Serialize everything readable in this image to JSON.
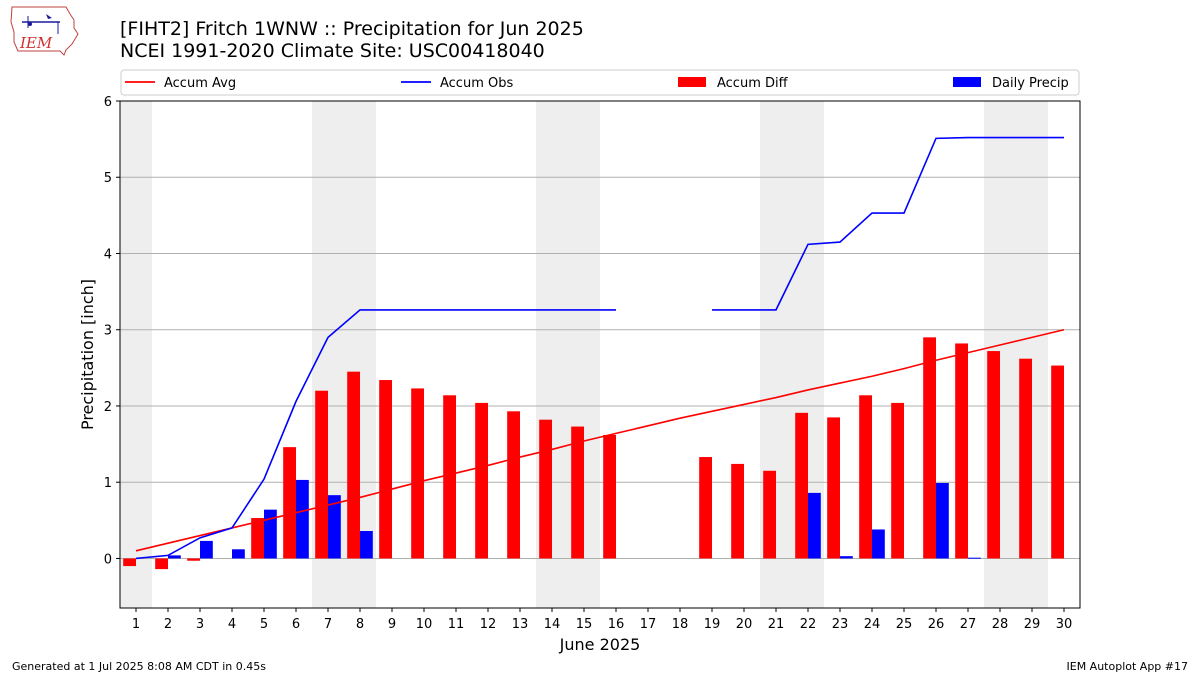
{
  "header": {
    "title_line1": "[FIHT2] Fritch 1WNW :: Precipitation for Jun 2025",
    "title_line2": "NCEI 1991-2020 Climate Site: USC00418040",
    "logo_text": "IEM"
  },
  "footer": {
    "left": "Generated at 1 Jul 2025 8:08 AM CDT in 0.45s",
    "right": "IEM Autoplot App #17"
  },
  "colors": {
    "accum_avg": "#ff0000",
    "accum_obs": "#0000ff",
    "accum_diff": "#ff0000",
    "daily_precip": "#0000ff",
    "weekend_shade": "#eeeeee",
    "grid": "#b0b0b0"
  },
  "chart_data": {
    "type": "bar",
    "xlabel": "June 2025",
    "ylabel": "Precipitation [inch]",
    "ylim": [
      -0.65,
      6
    ],
    "yticks": [
      0,
      1,
      2,
      3,
      4,
      5,
      6
    ],
    "xlim": [
      0.5,
      30.5
    ],
    "x": [
      1,
      2,
      3,
      4,
      5,
      6,
      7,
      8,
      9,
      10,
      11,
      12,
      13,
      14,
      15,
      16,
      17,
      18,
      19,
      20,
      21,
      22,
      23,
      24,
      25,
      26,
      27,
      28,
      29,
      30
    ],
    "grid": "horizontal",
    "legend_position": "top",
    "weekend_bands": [
      [
        0.5,
        1.5
      ],
      [
        6.5,
        8.5
      ],
      [
        13.5,
        15.5
      ],
      [
        20.5,
        22.5
      ],
      [
        27.5,
        29.5
      ]
    ],
    "legend": [
      "Accum Avg",
      "Accum Obs",
      "Accum Diff",
      "Daily Precip"
    ],
    "series": [
      {
        "name": "Accum Avg",
        "kind": "line",
        "values": [
          0.1,
          0.2,
          0.3,
          0.4,
          0.5,
          0.6,
          0.7,
          0.8,
          0.91,
          1.02,
          1.12,
          1.22,
          1.33,
          1.43,
          1.54,
          1.64,
          1.74,
          1.84,
          1.93,
          2.02,
          2.11,
          2.21,
          2.3,
          2.39,
          2.49,
          2.6,
          2.7,
          2.8,
          2.9,
          3.0
        ]
      },
      {
        "name": "Accum Obs",
        "kind": "line",
        "values": [
          0.0,
          0.04,
          0.27,
          0.4,
          1.04,
          2.06,
          2.9,
          3.26,
          3.26,
          3.26,
          3.26,
          3.26,
          3.26,
          3.26,
          3.26,
          3.26,
          null,
          null,
          3.26,
          3.26,
          3.26,
          4.12,
          4.15,
          4.53,
          4.53,
          5.51,
          5.52,
          5.52,
          5.52,
          5.52
        ]
      },
      {
        "name": "Accum Diff",
        "kind": "bar",
        "values": [
          -0.1,
          -0.14,
          -0.03,
          0.0,
          0.53,
          1.46,
          2.2,
          2.45,
          2.34,
          2.23,
          2.14,
          2.04,
          1.93,
          1.82,
          1.73,
          1.62,
          null,
          null,
          1.33,
          1.24,
          1.15,
          1.91,
          1.85,
          2.14,
          2.04,
          2.9,
          2.82,
          2.72,
          2.62,
          2.53
        ]
      },
      {
        "name": "Daily Precip",
        "kind": "bar",
        "values": [
          0.0,
          0.04,
          0.23,
          0.12,
          0.64,
          1.03,
          0.83,
          0.36,
          0,
          0,
          0,
          0,
          0,
          0,
          0,
          0,
          null,
          null,
          0,
          0,
          0,
          0.86,
          0.03,
          0.38,
          0,
          0.99,
          0.01,
          0,
          0,
          0
        ]
      }
    ]
  }
}
